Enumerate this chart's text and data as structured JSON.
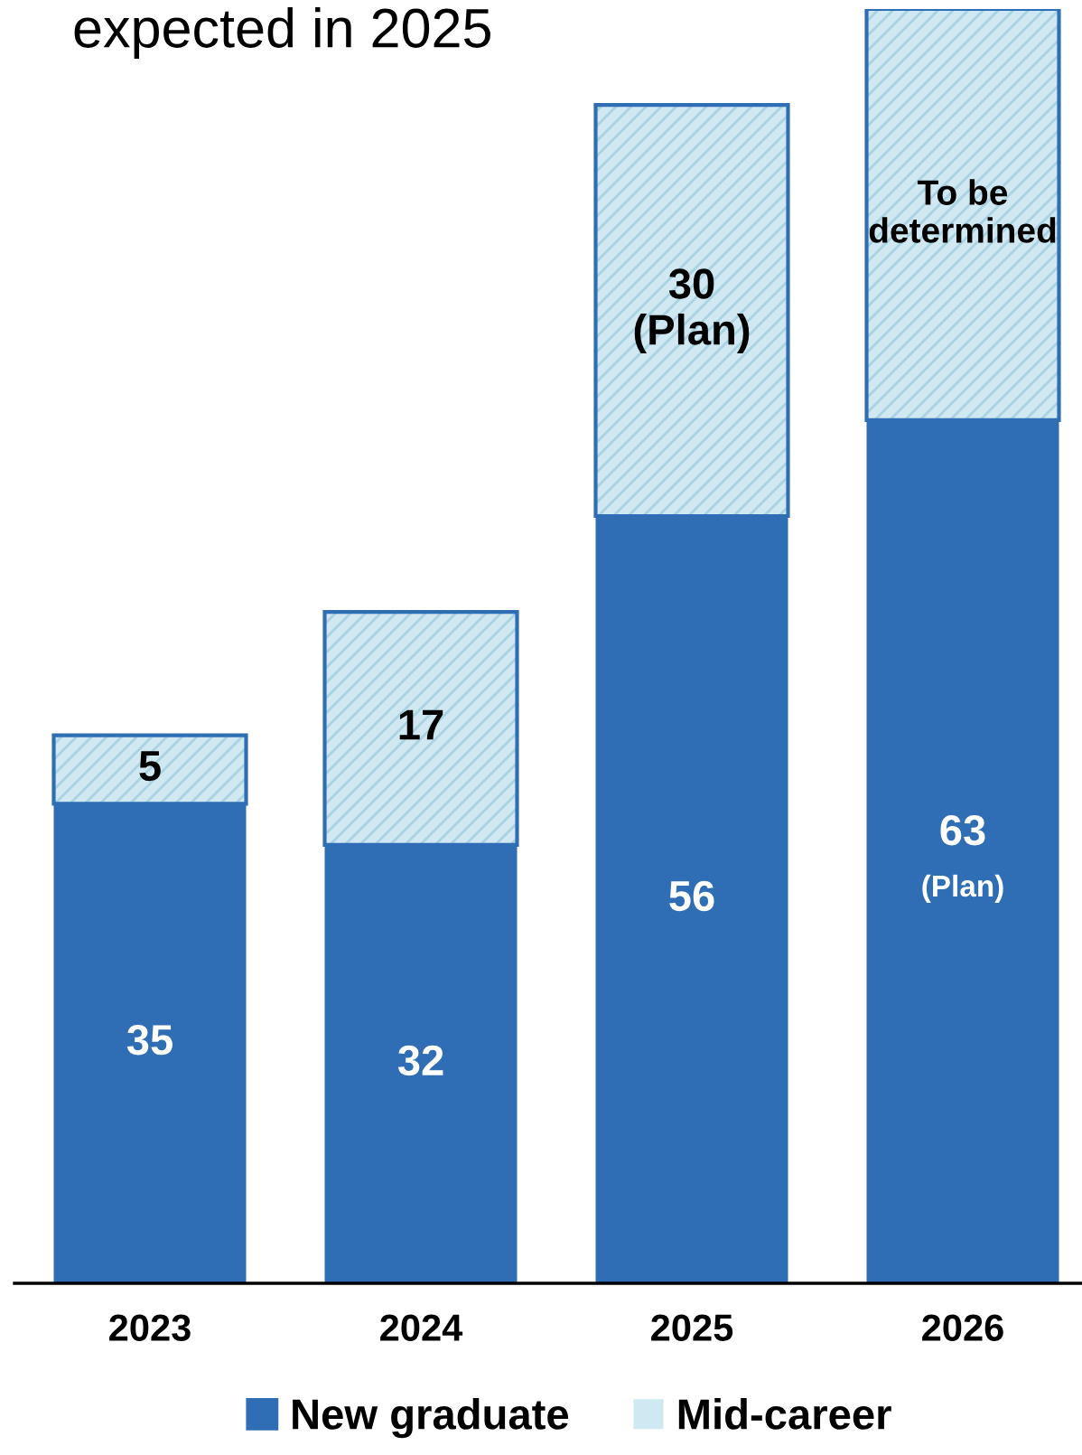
{
  "chart_data": {
    "type": "bar",
    "title": "expected in 2025",
    "categories": [
      "2023",
      "2024",
      "2025",
      "2026"
    ],
    "stacked": true,
    "legend": "bottom",
    "series": [
      {
        "name": "New graduate",
        "color": "#2f6eb5",
        "values": [
          35,
          32,
          56,
          63
        ],
        "value_labels": [
          "35",
          "32",
          "56",
          "63\n(Plan)"
        ]
      },
      {
        "name": "Mid-career",
        "color": "#cfe8f1",
        "values": [
          5,
          17,
          30,
          30
        ],
        "value_labels": [
          "5",
          "17",
          "30\n(Plan)",
          "To be\ndetermined"
        ]
      }
    ]
  }
}
